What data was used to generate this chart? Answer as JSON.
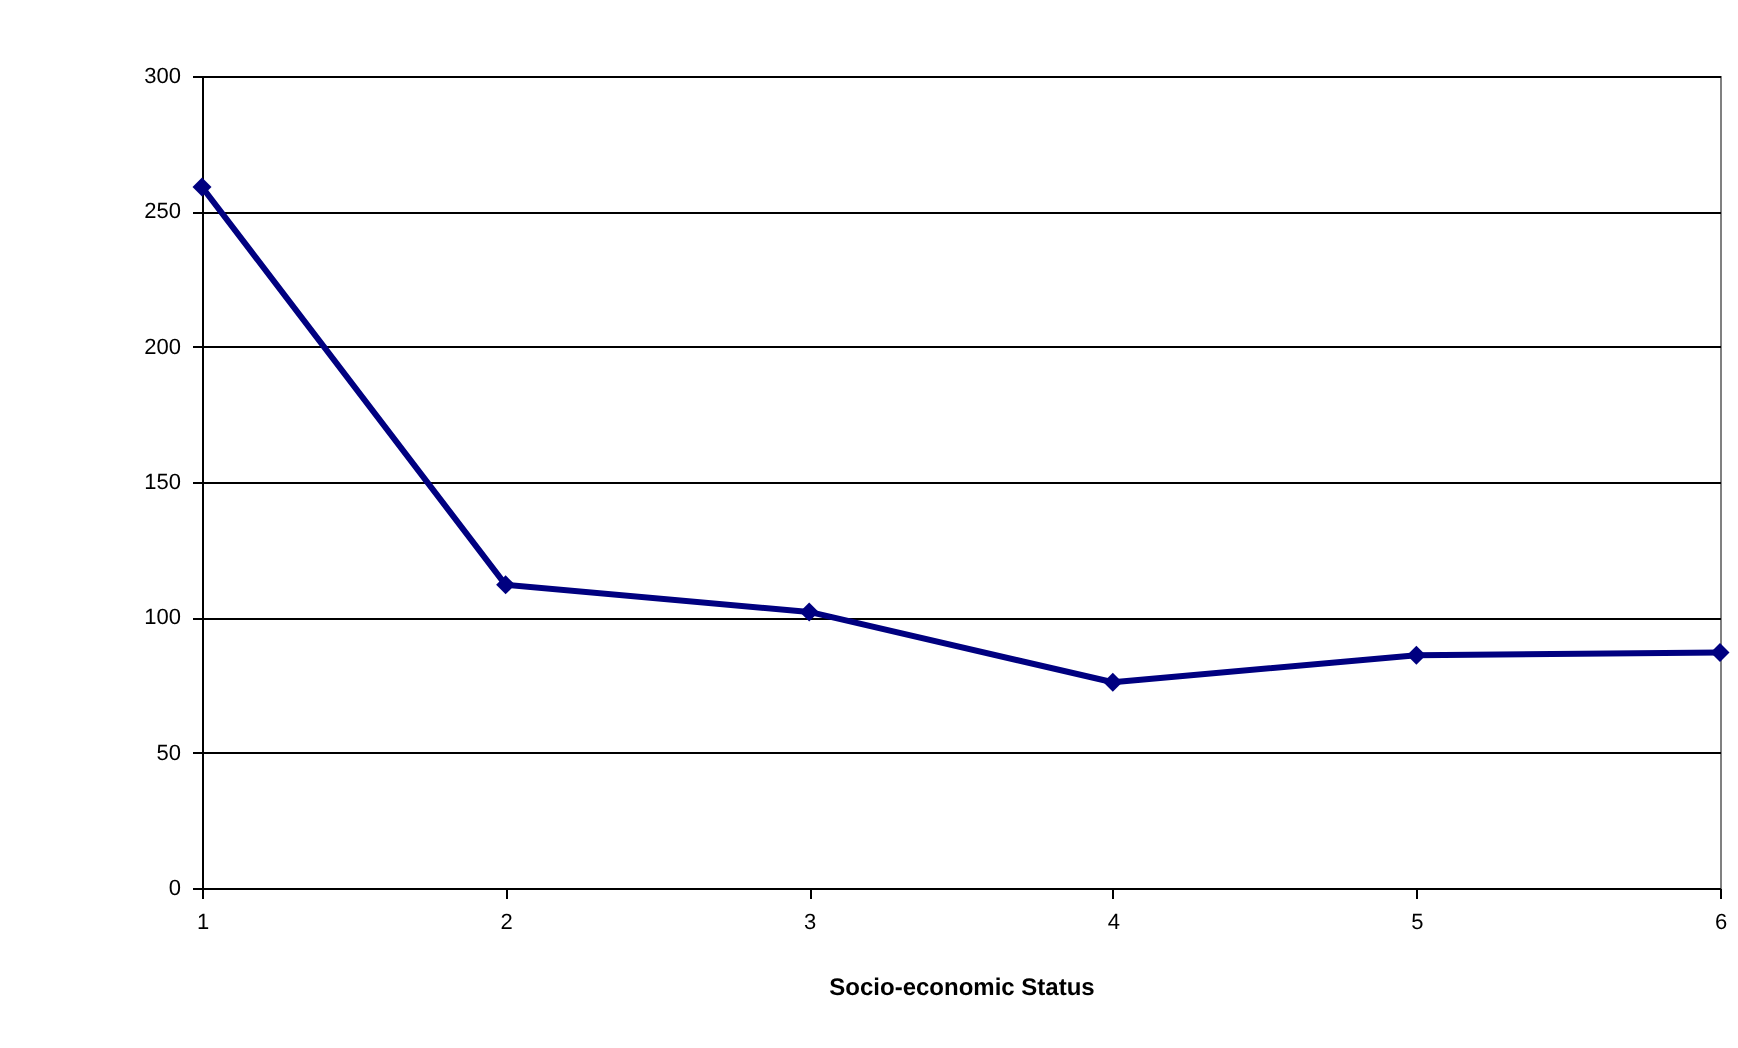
{
  "chart_data": {
    "type": "line",
    "xlabel": "Socio-economic Status",
    "x": [
      1,
      2,
      3,
      4,
      5,
      6
    ],
    "series": [
      {
        "color": "#000080",
        "values": [
          259,
          112,
          102,
          76,
          86,
          87
        ]
      }
    ],
    "xlim": [
      1,
      6
    ],
    "xticks": [
      1,
      2,
      3,
      4,
      5,
      6
    ],
    "ylim": [
      0,
      300
    ],
    "yticks": [
      0,
      50,
      100,
      150,
      200,
      250,
      300
    ],
    "grid": "y",
    "marker": "diamond",
    "line_style": "solid",
    "legend": false
  }
}
